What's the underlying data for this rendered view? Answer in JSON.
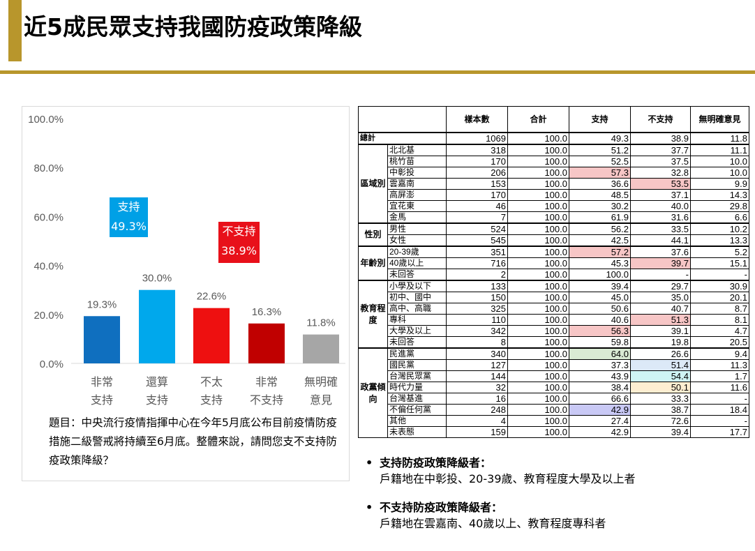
{
  "title": "近5成民眾支持我國防疫政策降級",
  "chart_data": {
    "type": "bar",
    "categories": [
      [
        "非常",
        "支持"
      ],
      [
        "還算",
        "支持"
      ],
      [
        "不太",
        "支持"
      ],
      [
        "非常",
        "不支持"
      ],
      [
        "無明確",
        "意見"
      ]
    ],
    "values": [
      19.3,
      30.0,
      22.6,
      16.3,
      11.8
    ],
    "value_labels": [
      "19.3%",
      "30.0%",
      "22.6%",
      "16.3%",
      "11.8%"
    ],
    "colors": [
      "#0f6fbf",
      "#00a8ec",
      "#ee1010",
      "#c00000",
      "#a6a6a6"
    ],
    "ylim": [
      0,
      100
    ],
    "yticks": [
      "0.0%",
      "20.0%",
      "40.0%",
      "60.0%",
      "80.0%",
      "100.0%"
    ],
    "grid": false
  },
  "annotations": {
    "support": {
      "label": "支持",
      "value": "49.3%",
      "color": "#00a0e6"
    },
    "oppose": {
      "label": "不支持",
      "value": "38.9%",
      "color": "#e8101a"
    }
  },
  "question": "題目：中央流行疫情指揮中心在今年5月底公布目前疫情防疫措施二級警戒將持續至6月底。整體來說，請問您支不支持防疫政策降級？",
  "table": {
    "headers": [
      "樣本數",
      "合計",
      "支持",
      "不支持",
      "無明確意見"
    ],
    "total": {
      "label": "總計",
      "values": [
        "1069",
        "100.0",
        "49.3",
        "38.9",
        "11.8"
      ]
    },
    "groups": [
      {
        "name": "區域別",
        "rows": [
          {
            "label": "北北基",
            "values": [
              "318",
              "100.0",
              "51.2",
              "37.7",
              "11.1"
            ]
          },
          {
            "label": "桃竹苗",
            "values": [
              "170",
              "100.0",
              "52.5",
              "37.5",
              "10.0"
            ]
          },
          {
            "label": "中彰投",
            "values": [
              "206",
              "100.0",
              "57.3",
              "32.8",
              "10.0"
            ],
            "hl": {
              "2": "pink"
            }
          },
          {
            "label": "雲嘉南",
            "values": [
              "153",
              "100.0",
              "36.6",
              "53.5",
              "9.9"
            ],
            "hl": {
              "3": "pink"
            }
          },
          {
            "label": "高屏澎",
            "values": [
              "170",
              "100.0",
              "48.5",
              "37.1",
              "14.3"
            ]
          },
          {
            "label": "宜花東",
            "values": [
              "46",
              "100.0",
              "30.2",
              "40.0",
              "29.8"
            ]
          },
          {
            "label": "金馬",
            "values": [
              "7",
              "100.0",
              "61.9",
              "31.6",
              "6.6"
            ]
          }
        ]
      },
      {
        "name": "性別",
        "rows": [
          {
            "label": "男性",
            "values": [
              "524",
              "100.0",
              "56.2",
              "33.5",
              "10.2"
            ]
          },
          {
            "label": "女性",
            "values": [
              "545",
              "100.0",
              "42.5",
              "44.1",
              "13.3"
            ]
          }
        ]
      },
      {
        "name": "年齡別",
        "rows": [
          {
            "label": "20-39歲",
            "values": [
              "351",
              "100.0",
              "57.2",
              "37.6",
              "5.2"
            ],
            "hl": {
              "2": "pink"
            }
          },
          {
            "label": "40歲以上",
            "values": [
              "716",
              "100.0",
              "45.3",
              "39.7",
              "15.1"
            ],
            "hl": {
              "3": "pink"
            }
          },
          {
            "label": "未回答",
            "values": [
              "2",
              "100.0",
              "100.0",
              "-",
              "-"
            ]
          }
        ]
      },
      {
        "name": "教育程度",
        "rows": [
          {
            "label": "小學及以下",
            "values": [
              "133",
              "100.0",
              "39.4",
              "29.7",
              "30.9"
            ]
          },
          {
            "label": "初中、國中",
            "values": [
              "150",
              "100.0",
              "45.0",
              "35.0",
              "20.1"
            ]
          },
          {
            "label": "高中、高職",
            "values": [
              "325",
              "100.0",
              "50.6",
              "40.7",
              "8.7"
            ]
          },
          {
            "label": "專科",
            "values": [
              "110",
              "100.0",
              "40.6",
              "51.3",
              "8.1"
            ],
            "hl": {
              "3": "pink"
            }
          },
          {
            "label": "大學及以上",
            "values": [
              "342",
              "100.0",
              "56.3",
              "39.1",
              "4.7"
            ],
            "hl": {
              "2": "pink"
            }
          },
          {
            "label": "未回答",
            "values": [
              "8",
              "100.0",
              "59.8",
              "19.8",
              "20.5"
            ]
          }
        ]
      },
      {
        "name": "政黨傾向",
        "rows": [
          {
            "label": "民進黨",
            "values": [
              "340",
              "100.0",
              "64.0",
              "26.6",
              "9.4"
            ],
            "hl": {
              "2": "green"
            }
          },
          {
            "label": "國民黨",
            "values": [
              "127",
              "100.0",
              "37.3",
              "51.4",
              "11.3"
            ],
            "hl": {
              "3": "blue"
            }
          },
          {
            "label": "台灣民眾黨",
            "values": [
              "144",
              "100.0",
              "43.9",
              "54.4",
              "1.7"
            ],
            "hl": {
              "3": "cyan"
            }
          },
          {
            "label": "時代力量",
            "values": [
              "32",
              "100.0",
              "38.4",
              "50.1",
              "11.6"
            ],
            "hl": {
              "3": "yellow"
            }
          },
          {
            "label": "台灣基進",
            "values": [
              "16",
              "100.0",
              "66.6",
              "33.3",
              "-"
            ]
          },
          {
            "label": "不偏任何黨",
            "values": [
              "248",
              "100.0",
              "42.9",
              "38.7",
              "18.4"
            ],
            "hl": {
              "2": "purple"
            }
          },
          {
            "label": "其他",
            "values": [
              "4",
              "100.0",
              "27.4",
              "72.6",
              "-"
            ]
          },
          {
            "label": "未表態",
            "values": [
              "159",
              "100.0",
              "42.9",
              "39.4",
              "17.7"
            ]
          }
        ]
      }
    ]
  },
  "findings": [
    {
      "title": "支持防疫政策降級者：",
      "detail": "戶籍地在中彰投、20-39歲、教育程度大學及以上者"
    },
    {
      "title": "不支持防疫政策降級者：",
      "detail": "戶籍地在雲嘉南、40歲以上、教育程度專科者"
    }
  ]
}
